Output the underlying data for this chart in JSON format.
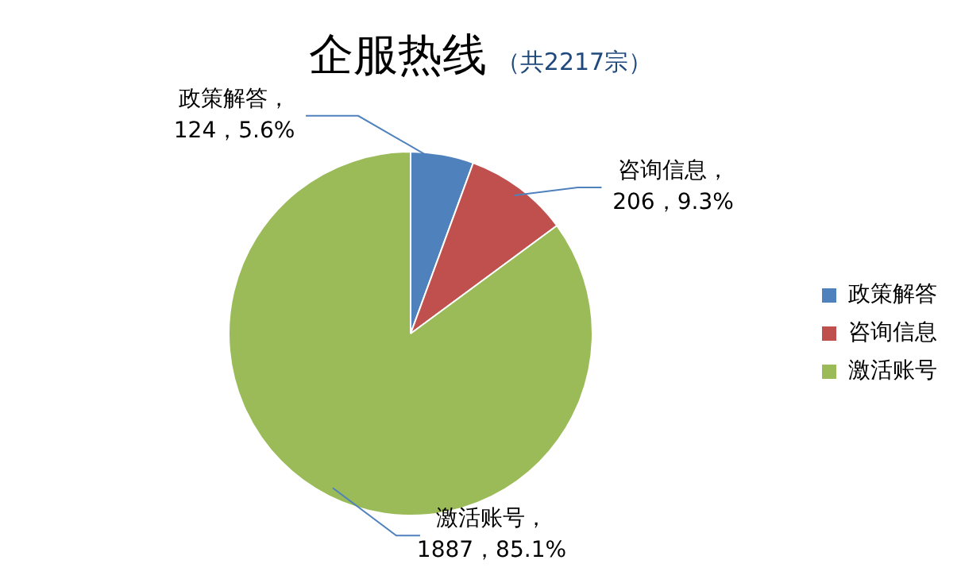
{
  "chart_data": {
    "type": "pie",
    "title": "企服热线",
    "subtitle": "（共2217宗）",
    "categories": [
      "政策解答",
      "咨询信息",
      "激活账号"
    ],
    "values": [
      124,
      206,
      1887
    ],
    "colors": [
      "#4f81bd",
      "#c0504d",
      "#9bbb59"
    ],
    "value_labels": [
      "政策解答，\n124，5.6%",
      "咨询信息，\n206，9.3%",
      "激活账号，\n1887，85.1%"
    ],
    "legend": "right"
  }
}
